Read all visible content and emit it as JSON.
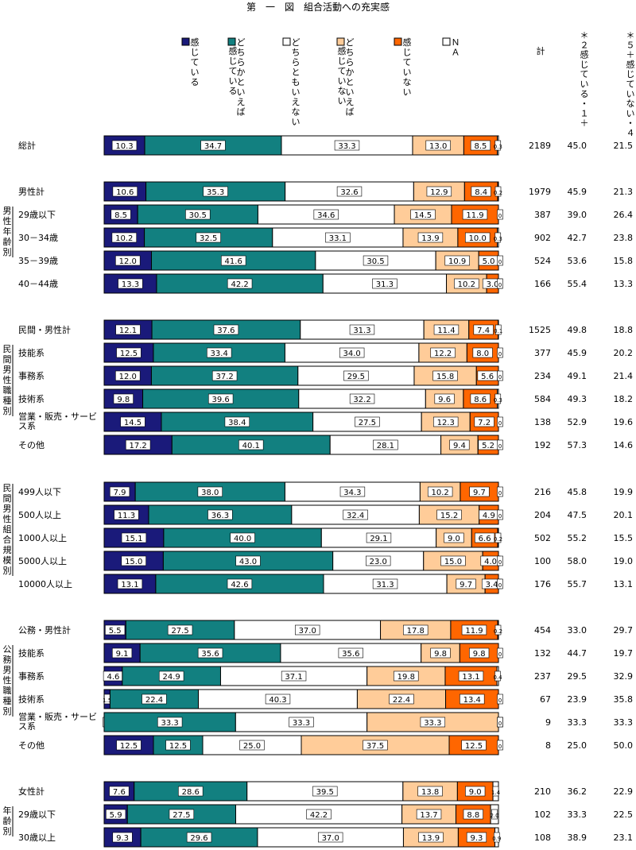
{
  "chart_data": {
    "type": "bar",
    "orientation": "horizontal",
    "stacked": true,
    "normalized": true,
    "title": "第　一　図　組合活動への充実感",
    "legend": {
      "placement": "top",
      "entries": [
        {
          "key": "s1",
          "label": "感じている",
          "color": "#1a1a7a"
        },
        {
          "key": "s2",
          "label": "どちらかといえば感じている",
          "color": "#128080"
        },
        {
          "key": "s3",
          "label": "どちらともいえない",
          "color": "#ffffff"
        },
        {
          "key": "s4",
          "label": "どちらかといえば感じていない",
          "color": "#ffcc99"
        },
        {
          "key": "s5",
          "label": "感じていない",
          "color": "#ff6600"
        },
        {
          "key": "s6",
          "label": "ＮＡ",
          "color": "#ffffff"
        }
      ]
    },
    "columns": [
      "計",
      "＊２感じている・１＋",
      "＊５＋感じていない・４"
    ],
    "groups": [
      {
        "label": "",
        "rows": [
          {
            "label": "総計",
            "values": [
              10.3,
              34.7,
              33.3,
              13.0,
              8.5,
              0.3
            ],
            "total": "2189",
            "agree": "45.0",
            "disagree": "21.5"
          }
        ]
      },
      {
        "label": "男性年齢別",
        "rows": [
          {
            "label": "男性計",
            "values": [
              10.6,
              35.3,
              32.6,
              12.9,
              8.4,
              0.2
            ],
            "total": "1979",
            "agree": "45.9",
            "disagree": "21.3",
            "header": true
          },
          {
            "label": "29歳以下",
            "values": [
              8.5,
              30.5,
              34.6,
              14.5,
              11.9,
              0
            ],
            "total": "387",
            "agree": "39.0",
            "disagree": "26.4"
          },
          {
            "label": "30－34歳",
            "values": [
              10.2,
              32.5,
              33.1,
              13.9,
              10.0,
              0.3
            ],
            "total": "902",
            "agree": "42.7",
            "disagree": "23.8"
          },
          {
            "label": "35－39歳",
            "values": [
              12.0,
              41.6,
              30.5,
              10.9,
              5.0,
              0
            ],
            "total": "524",
            "agree": "53.6",
            "disagree": "15.8"
          },
          {
            "label": "40－44歳",
            "values": [
              13.3,
              42.2,
              31.3,
              10.2,
              3.0,
              0
            ],
            "total": "166",
            "agree": "55.4",
            "disagree": "13.3"
          }
        ]
      },
      {
        "label": "民間男性職種別",
        "rows": [
          {
            "label": "民間・男性計",
            "values": [
              12.1,
              37.6,
              31.3,
              11.4,
              7.4,
              0.1
            ],
            "total": "1525",
            "agree": "49.8",
            "disagree": "18.8",
            "header": true
          },
          {
            "label": "技能系",
            "values": [
              12.5,
              33.4,
              34.0,
              12.2,
              8.0,
              0
            ],
            "total": "377",
            "agree": "45.9",
            "disagree": "20.2"
          },
          {
            "label": "事務系",
            "values": [
              12.0,
              37.2,
              29.5,
              15.8,
              5.6,
              0
            ],
            "total": "234",
            "agree": "49.1",
            "disagree": "21.4"
          },
          {
            "label": "技術系",
            "values": [
              9.8,
              39.6,
              32.2,
              9.6,
              8.6,
              0.3
            ],
            "total": "584",
            "agree": "49.3",
            "disagree": "18.2"
          },
          {
            "label": "営業・販売・サービス系",
            "values": [
              14.5,
              38.4,
              27.5,
              12.3,
              7.2,
              0
            ],
            "total": "138",
            "agree": "52.9",
            "disagree": "19.6"
          },
          {
            "label": "その他",
            "values": [
              17.2,
              40.1,
              28.1,
              9.4,
              5.2,
              0
            ],
            "total": "192",
            "agree": "57.3",
            "disagree": "14.6"
          }
        ]
      },
      {
        "label": "民間男性組合規模別",
        "rows": [
          {
            "label": "499人以下",
            "values": [
              7.9,
              38.0,
              34.3,
              10.2,
              9.7,
              0
            ],
            "total": "216",
            "agree": "45.8",
            "disagree": "19.9"
          },
          {
            "label": "500人以上",
            "values": [
              11.3,
              36.3,
              32.4,
              15.2,
              4.9,
              0
            ],
            "total": "204",
            "agree": "47.5",
            "disagree": "20.1"
          },
          {
            "label": "1000人以上",
            "values": [
              15.1,
              40.0,
              29.1,
              9.0,
              6.6,
              0.2
            ],
            "total": "502",
            "agree": "55.2",
            "disagree": "15.5"
          },
          {
            "label": "5000人以上",
            "values": [
              15.0,
              43.0,
              23.0,
              15.0,
              4.0,
              0
            ],
            "total": "100",
            "agree": "58.0",
            "disagree": "19.0"
          },
          {
            "label": "10000人以上",
            "values": [
              13.1,
              42.6,
              31.3,
              9.7,
              3.4,
              0
            ],
            "total": "176",
            "agree": "55.7",
            "disagree": "13.1"
          }
        ]
      },
      {
        "label": "公務男性職種別",
        "rows": [
          {
            "label": "公務・男性計",
            "values": [
              5.5,
              27.5,
              37.0,
              17.8,
              11.9,
              0.2
            ],
            "total": "454",
            "agree": "33.0",
            "disagree": "29.7",
            "header": true
          },
          {
            "label": "技能系",
            "values": [
              9.1,
              35.6,
              35.6,
              9.8,
              9.8,
              0
            ],
            "total": "132",
            "agree": "44.7",
            "disagree": "19.7"
          },
          {
            "label": "事務系",
            "values": [
              4.6,
              24.9,
              37.1,
              19.8,
              13.1,
              0.4
            ],
            "total": "237",
            "agree": "29.5",
            "disagree": "32.9"
          },
          {
            "label": "技術系",
            "values": [
              1.5,
              22.4,
              40.3,
              22.4,
              13.4,
              0
            ],
            "total": "67",
            "agree": "23.9",
            "disagree": "35.8"
          },
          {
            "label": "営業・販売・サービス系",
            "values": [
              0,
              33.3,
              33.3,
              33.3,
              0,
              0
            ],
            "total": "9",
            "agree": "33.3",
            "disagree": "33.3"
          },
          {
            "label": "その他",
            "values": [
              12.5,
              12.5,
              25.0,
              37.5,
              12.5,
              0
            ],
            "total": "8",
            "agree": "25.0",
            "disagree": "50.0"
          }
        ]
      },
      {
        "label": "年齢別",
        "rows": [
          {
            "label": "女性計",
            "values": [
              7.6,
              28.6,
              39.5,
              13.8,
              9.0,
              1.4
            ],
            "total": "210",
            "agree": "36.2",
            "disagree": "22.9",
            "header": true
          },
          {
            "label": "29歳以下",
            "values": [
              5.9,
              27.5,
              42.2,
              13.7,
              8.8,
              2.0
            ],
            "total": "102",
            "agree": "33.3",
            "disagree": "22.5"
          },
          {
            "label": "30歳以上",
            "values": [
              9.3,
              29.6,
              37.0,
              13.9,
              9.3,
              0.9
            ],
            "total": "108",
            "agree": "38.9",
            "disagree": "23.1"
          }
        ]
      }
    ],
    "xlim": [
      0,
      100
    ]
  }
}
